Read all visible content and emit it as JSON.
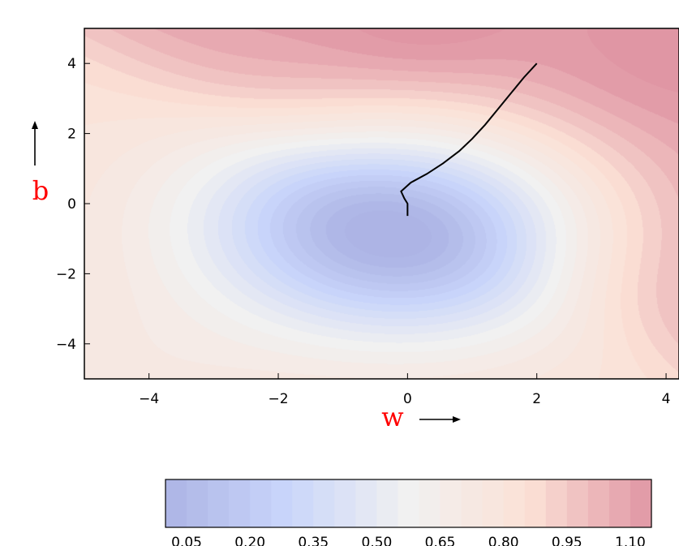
{
  "chart_data": {
    "type": "contour",
    "xlabel": "w",
    "ylabel": "b",
    "xlim": [
      -5,
      4.2
    ],
    "ylim": [
      -5,
      5
    ],
    "x_ticks": [
      -4,
      -2,
      0,
      2,
      4
    ],
    "y_ticks": [
      4,
      2,
      0,
      -2,
      -4
    ],
    "x_tick_labels": [
      "−4",
      "−2",
      "0",
      "2",
      "4"
    ],
    "y_tick_labels": [
      "4",
      "2",
      "0",
      "−2",
      "−4"
    ],
    "colorbar": {
      "ticks": [
        0.05,
        0.2,
        0.35,
        0.5,
        0.65,
        0.8,
        0.95,
        1.1
      ],
      "tick_labels": [
        "0.05",
        "0.20",
        "0.35",
        "0.50",
        "0.65",
        "0.80",
        "0.95",
        "1.10"
      ],
      "colormap": "coolwarm",
      "range": [
        0.0,
        1.15
      ]
    },
    "trajectory": {
      "start": [
        2.0,
        4.0
      ],
      "end": [
        0.0,
        -0.35
      ],
      "points": [
        [
          2.0,
          4.0
        ],
        [
          1.8,
          3.6
        ],
        [
          1.6,
          3.15
        ],
        [
          1.4,
          2.7
        ],
        [
          1.2,
          2.25
        ],
        [
          1.0,
          1.85
        ],
        [
          0.8,
          1.5
        ],
        [
          0.55,
          1.15
        ],
        [
          0.3,
          0.85
        ],
        [
          0.05,
          0.6
        ],
        [
          -0.1,
          0.35
        ],
        [
          -0.05,
          0.15
        ],
        [
          0.0,
          0.0
        ],
        [
          0.0,
          -0.2
        ],
        [
          0.0,
          -0.35
        ]
      ]
    },
    "colors": {
      "low": "#3b4cc0",
      "high": "#b40426",
      "trajectory": "#000000",
      "axis_label": "#ff0000"
    }
  }
}
